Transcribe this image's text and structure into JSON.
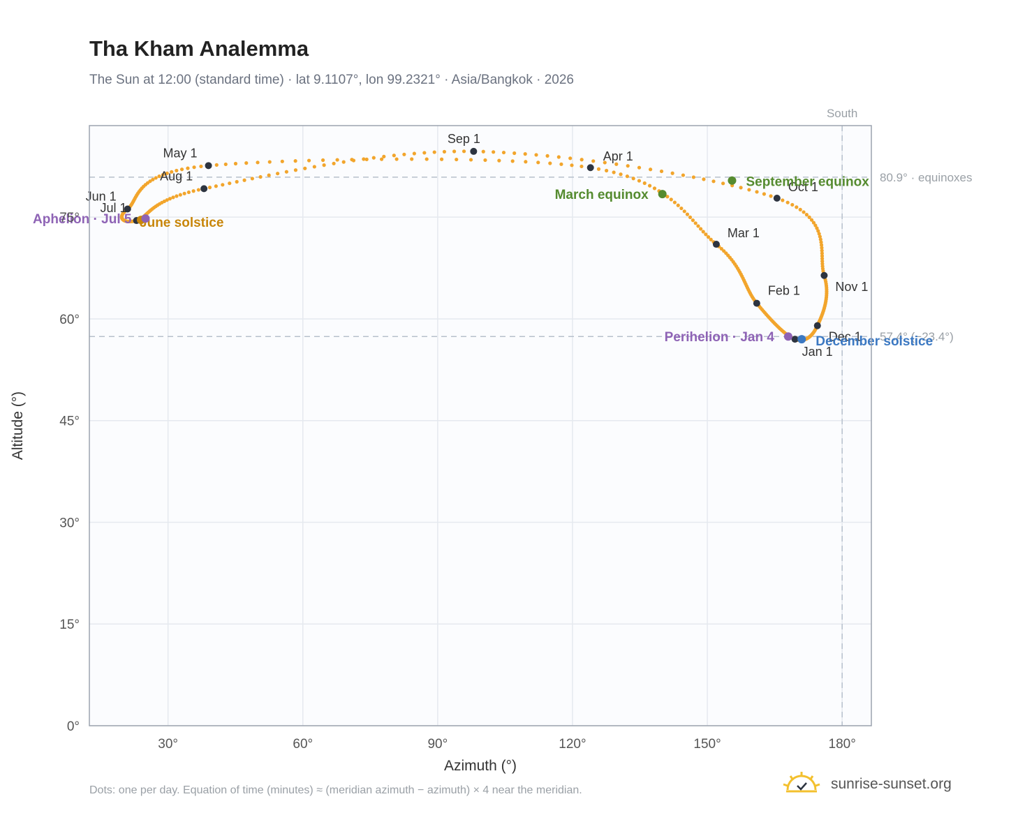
{
  "title": "Tha Kham Analemma",
  "subtitle": "The Sun at 12:00 (standard time) · lat 9.1107°, lon 99.2321° · Asia/Bangkok · 2026",
  "footnote": "Dots: one per day. Equation of time (minutes) ≈ (meridian azimuth − azimuth) × 4 near the meridian.",
  "brand": {
    "name": "sunrise-sunset.org",
    "icon": "sun-logo-icon"
  },
  "chart_data": {
    "type": "scatter",
    "xlabel": "Azimuth (°)",
    "ylabel": "Altitude (°)",
    "xlim": [
      12.5,
      186.5
    ],
    "ylim": [
      0,
      88.5
    ],
    "xticks": [
      30,
      60,
      90,
      120,
      150,
      180
    ],
    "xtick_labels": [
      "30°",
      "60°",
      "90°",
      "120°",
      "150°",
      "180°"
    ],
    "yticks": [
      0,
      15,
      30,
      45,
      60,
      75
    ],
    "ytick_labels": [
      "0°",
      "15°",
      "30°",
      "45°",
      "60°",
      "75°"
    ],
    "grid": true,
    "south_line": {
      "azimuth": 180,
      "label": "South"
    },
    "reference_lines": [
      {
        "altitude": 80.9,
        "label": "80.9° · equinoxes"
      },
      {
        "altitude": 57.4,
        "label": "57.4° (−23.4°)"
      }
    ],
    "month_markers": [
      {
        "label": "Jan 1",
        "az": 169.5,
        "alt": 57.0
      },
      {
        "label": "Feb 1",
        "az": 161.0,
        "alt": 62.3
      },
      {
        "label": "Mar 1",
        "az": 152.0,
        "alt": 71.0
      },
      {
        "label": "Apr 1",
        "az": 124.0,
        "alt": 82.3
      },
      {
        "label": "May 1",
        "az": 39.0,
        "alt": 82.6
      },
      {
        "label": "Jun 1",
        "az": 21.0,
        "alt": 76.2
      },
      {
        "label": "Jul 1",
        "az": 23.0,
        "alt": 74.5
      },
      {
        "label": "Aug 1",
        "az": 38.0,
        "alt": 79.2
      },
      {
        "label": "Sep 1",
        "az": 98.0,
        "alt": 84.7
      },
      {
        "label": "Oct 1",
        "az": 165.5,
        "alt": 77.8
      },
      {
        "label": "Nov 1",
        "az": 176.0,
        "alt": 66.4
      },
      {
        "label": "Dec 1",
        "az": 174.5,
        "alt": 59.0
      }
    ],
    "events": [
      {
        "label": "March equinox",
        "az": 140.0,
        "alt": 78.4,
        "color": "#558b2f"
      },
      {
        "label": "September equinox",
        "az": 155.5,
        "alt": 80.4,
        "color": "#558b2f"
      },
      {
        "label": "June solstice",
        "az": 24.0,
        "alt": 74.6,
        "color": "#c8860a"
      },
      {
        "label": "December solstice",
        "az": 171.0,
        "alt": 57.0,
        "color": "#3b78c2"
      },
      {
        "label": "Perihelion · Jan 4",
        "az": 168.0,
        "alt": 57.4,
        "color": "#8e63b5"
      },
      {
        "label": "Aphelion · Jul 5",
        "az": 25.0,
        "alt": 74.8,
        "color": "#8e63b5"
      }
    ],
    "path_color": "#f2a52c",
    "marker_color": "#2d3440"
  }
}
